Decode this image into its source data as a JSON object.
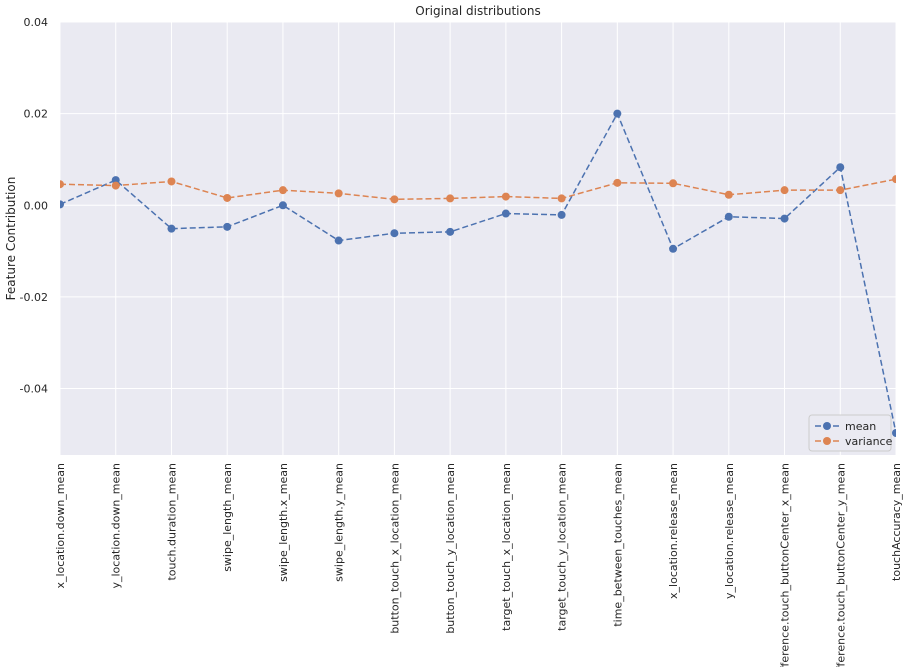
{
  "chart_data": {
    "type": "line",
    "title": "Original distributions",
    "xlabel": "",
    "ylabel": "Feature Contribution",
    "categories": [
      "x_location.down_mean",
      "y_location.down_mean",
      "touch.duration_mean",
      "swipe_length_mean",
      "swipe_length.x_mean",
      "swipe_length.y_mean",
      "button_touch_x_location_mean",
      "button_touch_y_location_mean",
      "target_touch_x_location_mean",
      "target_touch_y_location_mean",
      "time_between_touches_mean",
      "x_location.release_mean",
      "y_location.release_mean",
      "difference.touch_buttonCenter_x_mean",
      "difference.touch_buttonCenter_y_mean",
      "touchAccuracy_mean"
    ],
    "series": [
      {
        "name": "mean",
        "color": "#4c72b0",
        "values": [
          0.0002,
          0.0055,
          -0.0051,
          -0.0047,
          0.0,
          -0.0077,
          -0.0061,
          -0.0058,
          -0.0018,
          -0.0021,
          0.02,
          -0.0095,
          -0.0025,
          -0.0029,
          0.0083,
          -0.0497
        ]
      },
      {
        "name": "variance",
        "color": "#dd8452",
        "values": [
          0.0046,
          0.0043,
          0.0052,
          0.0016,
          0.0033,
          0.0026,
          0.0013,
          0.0015,
          0.0019,
          0.0015,
          0.0049,
          0.0048,
          0.0023,
          0.0033,
          0.0033,
          0.0057
        ]
      }
    ],
    "yticks": [
      "0.04",
      "0.02",
      "0.00",
      "-0.02",
      "-0.04"
    ],
    "ytick_values": [
      0.04,
      0.02,
      0.0,
      -0.02,
      -0.04
    ],
    "ylim": [
      -0.0545,
      0.04
    ],
    "grid": true,
    "legend_position": "lower-right",
    "line_style": "dashed",
    "marker": "circle",
    "background_color": "#eaeaf2",
    "grid_color": "#ffffff"
  }
}
